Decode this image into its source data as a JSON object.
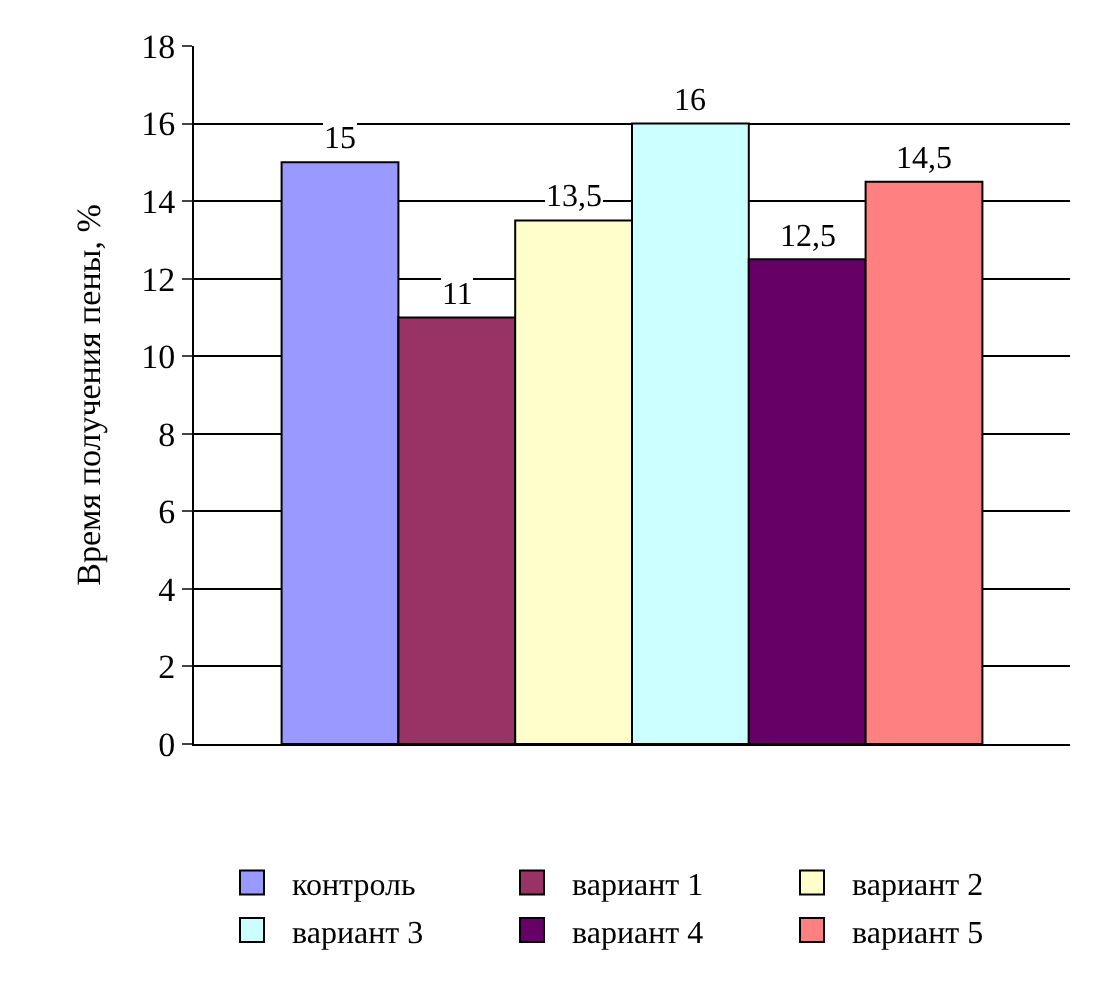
{
  "chart_data": {
    "type": "bar",
    "ylabel": "Время получения пены, %",
    "categories": [
      null
    ],
    "series": [
      {
        "name": "контроль",
        "color": "#9999ff",
        "values": [
          15
        ],
        "value_labels": [
          "15"
        ]
      },
      {
        "name": "вариант 1",
        "color": "#993366",
        "values": [
          11
        ],
        "value_labels": [
          "11"
        ]
      },
      {
        "name": "вариант 2",
        "color": "#ffffcc",
        "values": [
          13.5
        ],
        "value_labels": [
          "13,5"
        ]
      },
      {
        "name": "вариант 3",
        "color": "#ccffff",
        "values": [
          16
        ],
        "value_labels": [
          "16"
        ]
      },
      {
        "name": "вариант 4",
        "color": "#660066",
        "values": [
          12.5
        ],
        "value_labels": [
          "12,5"
        ]
      },
      {
        "name": "вариант 5",
        "color": "#ff8080",
        "values": [
          14.5
        ],
        "value_labels": [
          "14,5"
        ]
      }
    ],
    "ylim": [
      0,
      18
    ],
    "yticks": [
      0,
      2,
      4,
      6,
      8,
      10,
      12,
      14,
      16,
      18
    ],
    "grid": "y",
    "legend": "bottom"
  }
}
